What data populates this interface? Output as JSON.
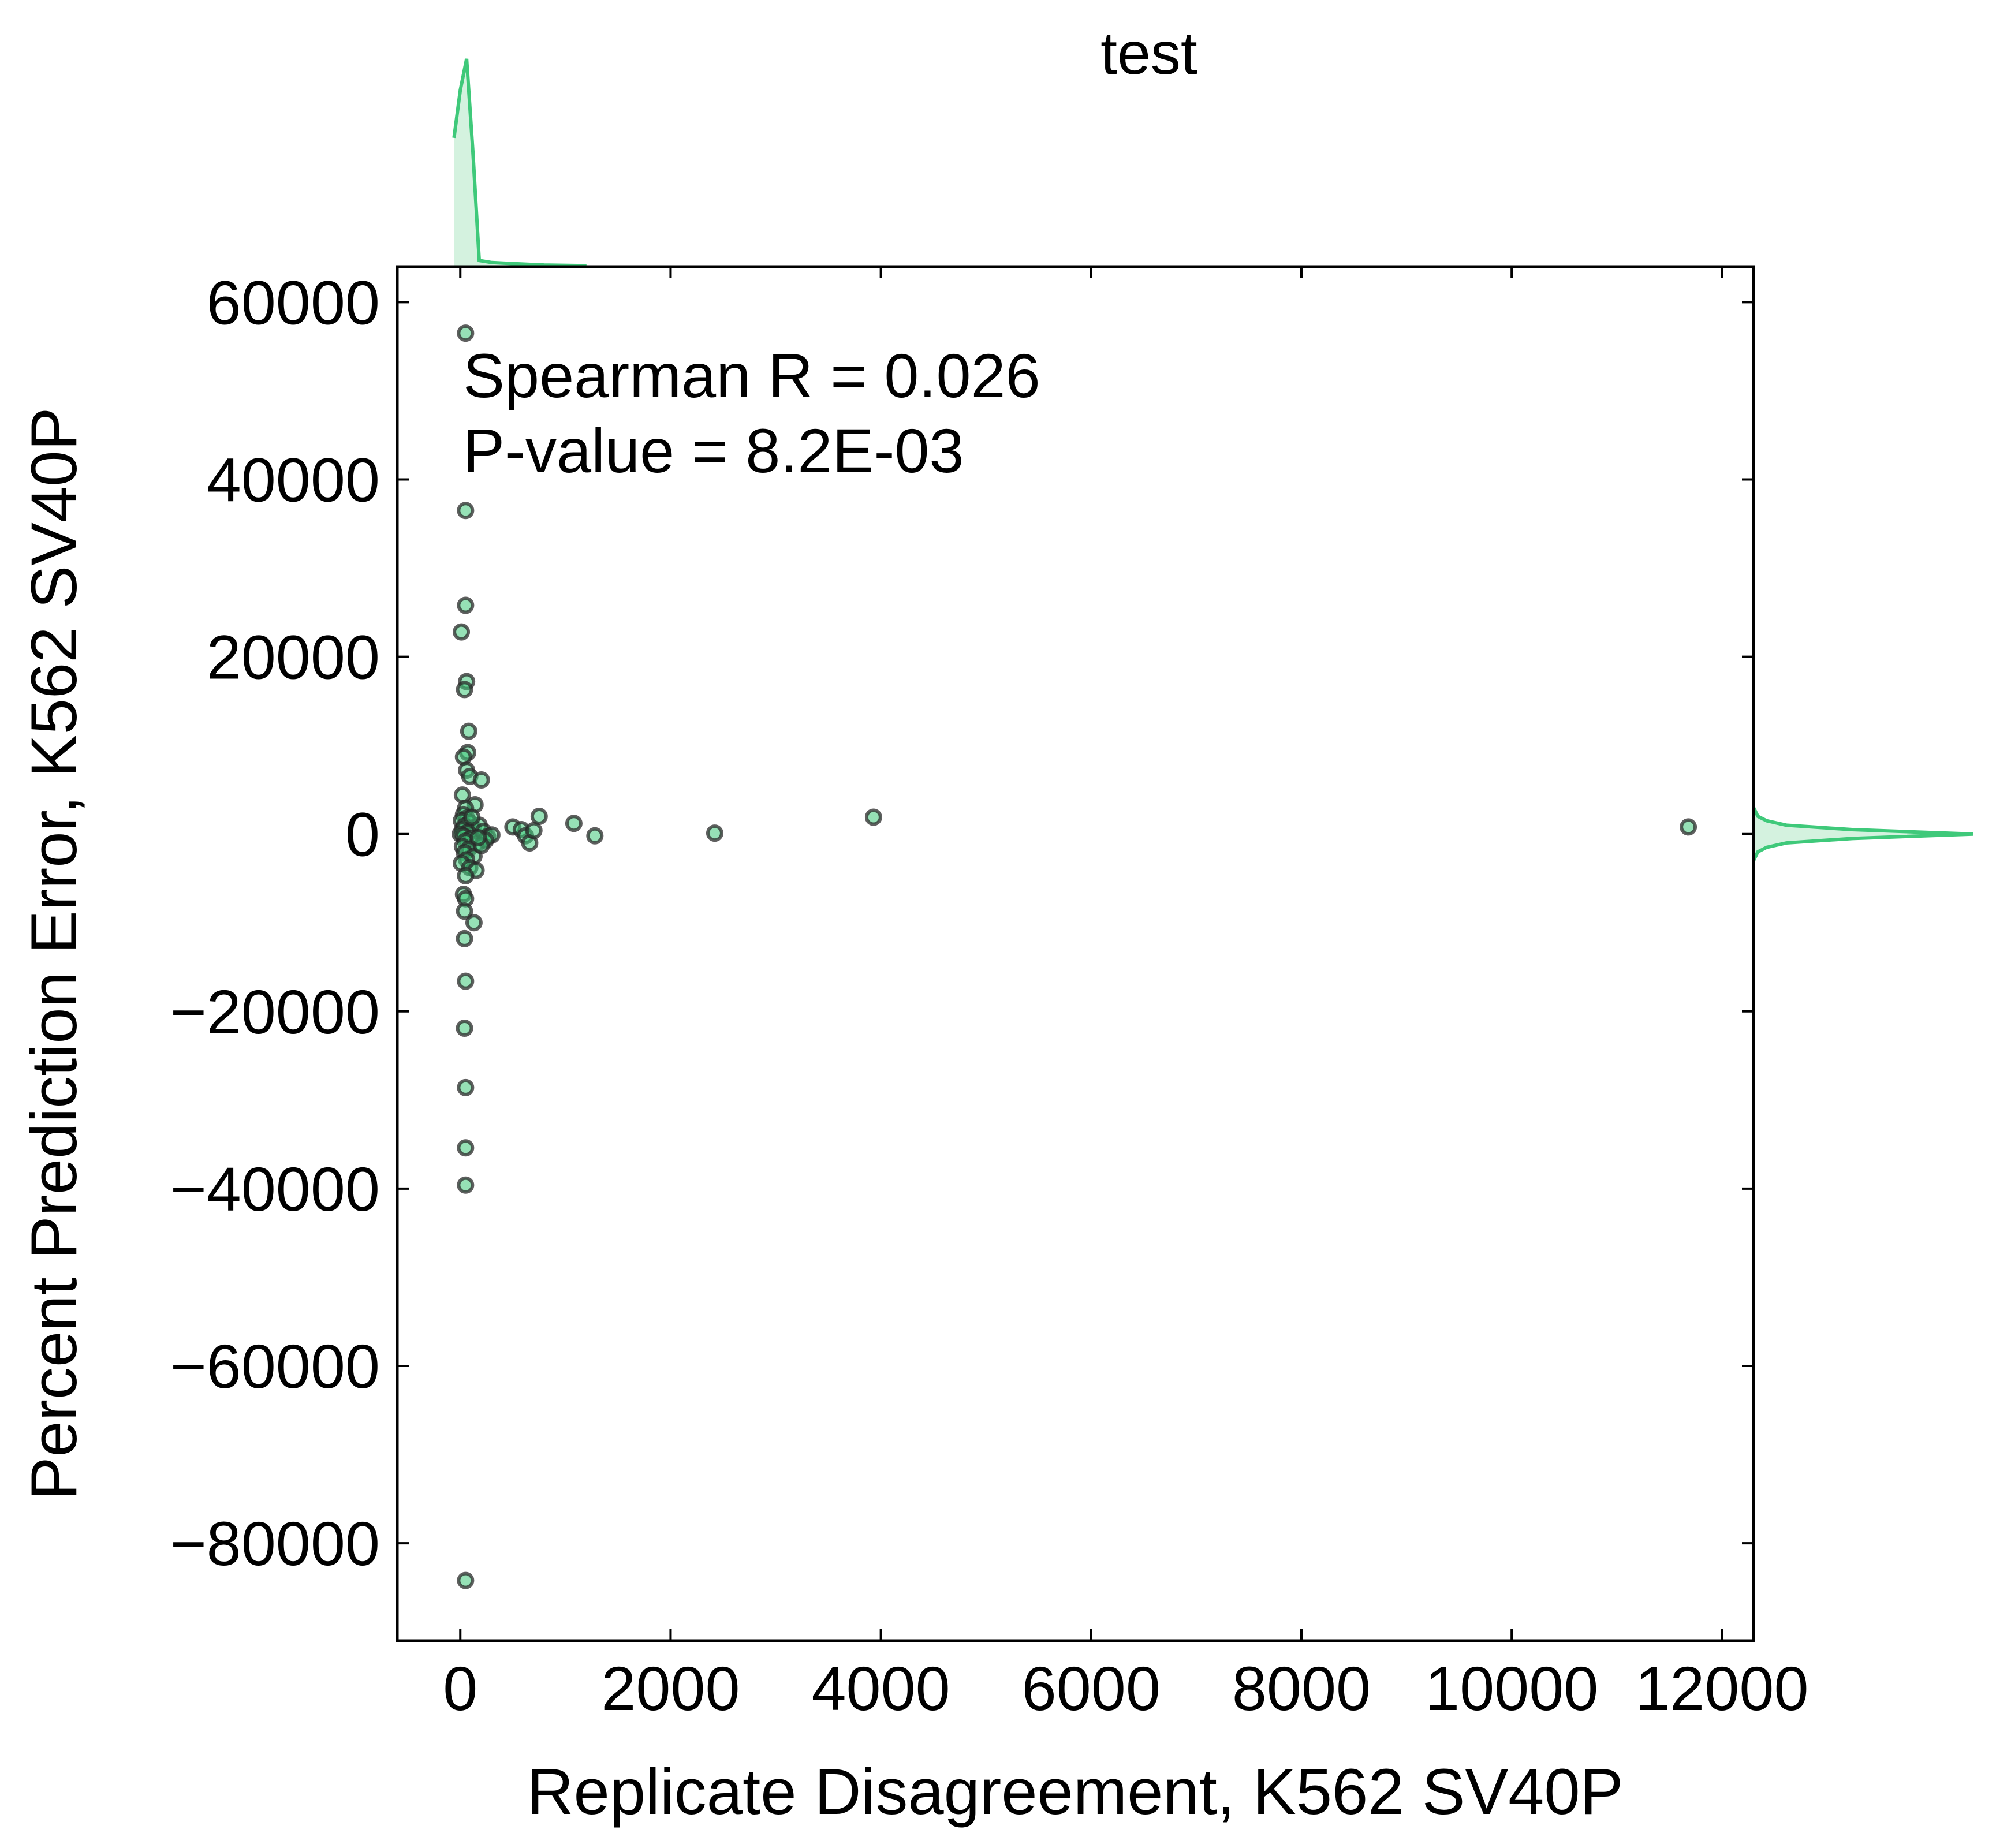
{
  "chart_data": {
    "type": "scatter",
    "title": "test",
    "xlabel": "Replicate Disagreement, K562 SV40P",
    "ylabel": "Percent Prediction Error, K562 SV40P",
    "annotation_lines": [
      "Spearman R = 0.026",
      "P-value = 8.2E-03"
    ],
    "xlim": [
      -600,
      12300
    ],
    "ylim": [
      -91000,
      64000
    ],
    "x_ticks": [
      0,
      2000,
      4000,
      6000,
      8000,
      10000,
      12000
    ],
    "x_tick_labels": [
      "0",
      "2000",
      "4000",
      "6000",
      "8000",
      "10000",
      "12000"
    ],
    "y_ticks": [
      60000,
      40000,
      20000,
      0,
      -20000,
      -40000,
      -60000,
      -80000
    ],
    "y_tick_labels": [
      "60000",
      "40000",
      "20000",
      "0",
      "−20000",
      "−40000",
      "−60000",
      "−80000"
    ],
    "grid": false,
    "marker_face_color": "#3fc97a",
    "marker_edge_color": "#2a2a2a",
    "kde_color": "#3fc97a",
    "kde_fill_color": "#d4f2df",
    "points": [
      {
        "x": 50,
        "y": 56500
      },
      {
        "x": 50,
        "y": 36500
      },
      {
        "x": 50,
        "y": 25800
      },
      {
        "x": 10,
        "y": 22800
      },
      {
        "x": 60,
        "y": 17200
      },
      {
        "x": 40,
        "y": 16300
      },
      {
        "x": 80,
        "y": 11600
      },
      {
        "x": 70,
        "y": 9200
      },
      {
        "x": 30,
        "y": 8700
      },
      {
        "x": 60,
        "y": 7200
      },
      {
        "x": 90,
        "y": 6500
      },
      {
        "x": 200,
        "y": 6100
      },
      {
        "x": 20,
        "y": 4400
      },
      {
        "x": 140,
        "y": 3300
      },
      {
        "x": 50,
        "y": 2900
      },
      {
        "x": 30,
        "y": 2200
      },
      {
        "x": 60,
        "y": 1800
      },
      {
        "x": 10,
        "y": 1500
      },
      {
        "x": 90,
        "y": 1300
      },
      {
        "x": 40,
        "y": 900
      },
      {
        "x": 120,
        "y": 700
      },
      {
        "x": 20,
        "y": 500
      },
      {
        "x": 70,
        "y": 200
      },
      {
        "x": 0,
        "y": 0
      },
      {
        "x": 30,
        "y": -200
      },
      {
        "x": 100,
        "y": -500
      },
      {
        "x": 50,
        "y": -800
      },
      {
        "x": 160,
        "y": -1100
      },
      {
        "x": 20,
        "y": -1400
      },
      {
        "x": 80,
        "y": -1700
      },
      {
        "x": 40,
        "y": -2100
      },
      {
        "x": 130,
        "y": -2500
      },
      {
        "x": 60,
        "y": -2900
      },
      {
        "x": 10,
        "y": -3300
      },
      {
        "x": 90,
        "y": -3800
      },
      {
        "x": 150,
        "y": -4100
      },
      {
        "x": 50,
        "y": -4700
      },
      {
        "x": 180,
        "y": 1000
      },
      {
        "x": 220,
        "y": 300
      },
      {
        "x": 260,
        "y": -300
      },
      {
        "x": 300,
        "y": -100
      },
      {
        "x": 240,
        "y": -700
      },
      {
        "x": 200,
        "y": -1300
      },
      {
        "x": 170,
        "y": -400
      },
      {
        "x": 110,
        "y": 1900
      },
      {
        "x": 30,
        "y": -6800
      },
      {
        "x": 50,
        "y": -7300
      },
      {
        "x": 40,
        "y": -8700
      },
      {
        "x": 130,
        "y": -10000
      },
      {
        "x": 40,
        "y": -11800
      },
      {
        "x": 50,
        "y": -16600
      },
      {
        "x": 40,
        "y": -21900
      },
      {
        "x": 50,
        "y": -28600
      },
      {
        "x": 50,
        "y": -35400
      },
      {
        "x": 50,
        "y": -39600
      },
      {
        "x": 50,
        "y": -84200
      },
      {
        "x": 500,
        "y": 800
      },
      {
        "x": 580,
        "y": 500
      },
      {
        "x": 620,
        "y": -200
      },
      {
        "x": 660,
        "y": -1000
      },
      {
        "x": 700,
        "y": 400
      },
      {
        "x": 750,
        "y": 2000
      },
      {
        "x": 1080,
        "y": 1200
      },
      {
        "x": 1280,
        "y": -200
      },
      {
        "x": 2420,
        "y": 100
      },
      {
        "x": 3930,
        "y": 1900
      },
      {
        "x": 11680,
        "y": 800
      }
    ],
    "kde_x": {
      "x": [
        -60,
        0,
        60,
        120,
        180,
        300,
        500,
        800,
        1200
      ],
      "density": [
        0.62,
        0.85,
        1.0,
        0.55,
        0.03,
        0.02,
        0.015,
        0.008,
        0.005
      ]
    },
    "kde_y": {
      "y": [
        -3000,
        -2000,
        -1500,
        -1000,
        -500,
        0,
        500,
        1000,
        1500,
        2000,
        3000
      ],
      "density": [
        0.0,
        0.02,
        0.06,
        0.15,
        0.45,
        1.0,
        0.45,
        0.15,
        0.06,
        0.02,
        0.0
      ]
    }
  }
}
